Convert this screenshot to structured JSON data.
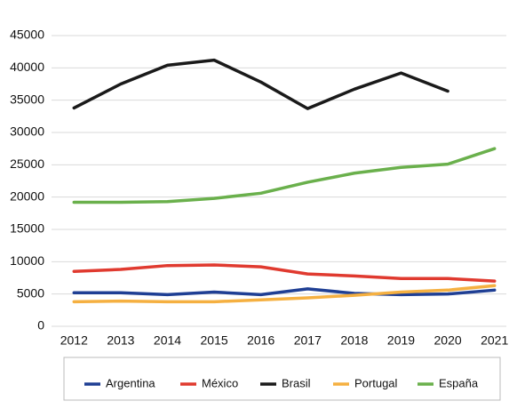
{
  "chart_data": {
    "type": "line",
    "categories": [
      "2012",
      "2013",
      "2014",
      "2015",
      "2016",
      "2017",
      "2018",
      "2019",
      "2020",
      "2021"
    ],
    "series": [
      {
        "name": "Argentina",
        "color": "#1f3f94",
        "values": [
          5200,
          5200,
          4900,
          5300,
          4900,
          5800,
          5100,
          4900,
          5000,
          5600
        ]
      },
      {
        "name": "México",
        "color": "#e03a2f",
        "values": [
          8500,
          8800,
          9400,
          9500,
          9200,
          8100,
          7800,
          7400,
          7400,
          7000
        ]
      },
      {
        "name": "Brasil",
        "color": "#1a1a1a",
        "values": [
          33800,
          37500,
          40400,
          41200,
          37800,
          33700,
          36700,
          39200,
          36400,
          null
        ]
      },
      {
        "name": "Portugal",
        "color": "#f5b041",
        "values": [
          3800,
          3900,
          3800,
          3800,
          4100,
          4400,
          4800,
          5300,
          5600,
          6300
        ]
      },
      {
        "name": "España",
        "color": "#6ab04c",
        "values": [
          19200,
          19200,
          19300,
          19800,
          20600,
          22300,
          23700,
          24600,
          25100,
          27500
        ]
      }
    ],
    "ylim": [
      0,
      45000
    ],
    "yticks": [
      0,
      5000,
      10000,
      15000,
      20000,
      25000,
      30000,
      35000,
      40000,
      45000
    ],
    "grid": true
  }
}
